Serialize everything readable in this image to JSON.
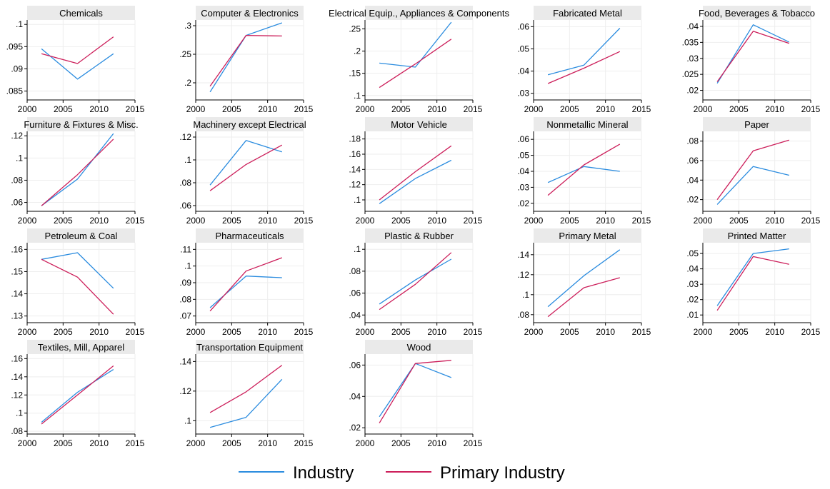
{
  "colors": {
    "industry": "#2b8cdf",
    "primary": "#cc1e5a",
    "header_bg": "#eaeaea",
    "grid": "#eeeeee",
    "axis": "#000000"
  },
  "chart_data": {
    "type": "line",
    "layout": "small-multiples",
    "x": [
      2002,
      2007,
      2012
    ],
    "x_ticks": [
      2000,
      2005,
      2010,
      2015
    ],
    "x_tick_labels": [
      "2000",
      "2005",
      "2010",
      "2015"
    ],
    "xlim": [
      2000,
      2015
    ],
    "grid": true,
    "legend": {
      "position": "bottom",
      "entries": [
        {
          "name": "Industry",
          "color": "#2b8cdf"
        },
        {
          "name": "Primary Industry",
          "color": "#cc1e5a"
        }
      ]
    },
    "panels": [
      {
        "title": "Chemicals",
        "ylim": [
          0.083,
          0.101
        ],
        "y_ticks": [
          0.085,
          0.09,
          0.095,
          0.1
        ],
        "y_tick_labels": [
          ".085",
          ".09",
          ".095",
          ".1"
        ],
        "series": [
          {
            "name": "Industry",
            "values": [
              0.0945,
              0.0877,
              0.0934
            ]
          },
          {
            "name": "Primary Industry",
            "values": [
              0.0934,
              0.0912,
              0.0972
            ]
          }
        ]
      },
      {
        "title": "Computer & Electronics",
        "ylim": [
          0.17,
          0.31
        ],
        "y_ticks": [
          0.2,
          0.25,
          0.3
        ],
        "y_tick_labels": [
          ".2",
          ".25",
          ".3"
        ],
        "series": [
          {
            "name": "Industry",
            "values": [
              0.184,
              0.283,
              0.305
            ]
          },
          {
            "name": "Primary Industry",
            "values": [
              0.194,
              0.283,
              0.282
            ]
          }
        ]
      },
      {
        "title": "Electrical Equip., Appliances & Components",
        "ylim": [
          0.09,
          0.27
        ],
        "y_ticks": [
          0.1,
          0.15,
          0.2,
          0.25
        ],
        "y_tick_labels": [
          ".1",
          ".15",
          ".2",
          ".25"
        ],
        "series": [
          {
            "name": "Industry",
            "values": [
              0.173,
              0.164,
              0.265
            ]
          },
          {
            "name": "Primary Industry",
            "values": [
              0.118,
              0.171,
              0.227
            ]
          }
        ]
      },
      {
        "title": "Fabricated Metal",
        "ylim": [
          0.027,
          0.063
        ],
        "y_ticks": [
          0.03,
          0.04,
          0.05,
          0.06
        ],
        "y_tick_labels": [
          ".03",
          ".04",
          ".05",
          ".06"
        ],
        "series": [
          {
            "name": "Industry",
            "values": [
              0.0383,
              0.0427,
              0.0593
            ]
          },
          {
            "name": "Primary Industry",
            "values": [
              0.0344,
              0.0413,
              0.0488
            ]
          }
        ]
      },
      {
        "title": "Food, Beverages & Tobacco",
        "ylim": [
          0.017,
          0.042
        ],
        "y_ticks": [
          0.02,
          0.025,
          0.03,
          0.035,
          0.04
        ],
        "y_tick_labels": [
          ".02",
          ".025",
          ".03",
          ".035",
          ".04"
        ],
        "series": [
          {
            "name": "Industry",
            "values": [
              0.0222,
              0.0405,
              0.0351
            ]
          },
          {
            "name": "Primary Industry",
            "values": [
              0.0227,
              0.0385,
              0.0347
            ]
          }
        ]
      },
      {
        "title": "Furniture & Fixtures & Misc.",
        "ylim": [
          0.052,
          0.124
        ],
        "y_ticks": [
          0.06,
          0.08,
          0.1,
          0.12
        ],
        "y_tick_labels": [
          ".06",
          ".08",
          ".1",
          ".12"
        ],
        "series": [
          {
            "name": "Industry",
            "values": [
              0.057,
              0.081,
              0.122
            ]
          },
          {
            "name": "Primary Industry",
            "values": [
              0.057,
              0.085,
              0.117
            ]
          }
        ]
      },
      {
        "title": "Machinery except Electrical",
        "ylim": [
          0.055,
          0.125
        ],
        "y_ticks": [
          0.06,
          0.08,
          0.1,
          0.12
        ],
        "y_tick_labels": [
          ".06",
          ".08",
          ".1",
          ".12"
        ],
        "series": [
          {
            "name": "Industry",
            "values": [
              0.078,
              0.117,
              0.107
            ]
          },
          {
            "name": "Primary Industry",
            "values": [
              0.073,
              0.096,
              0.113
            ]
          }
        ]
      },
      {
        "title": "Motor Vehicle",
        "ylim": [
          0.085,
          0.19
        ],
        "y_ticks": [
          0.1,
          0.12,
          0.14,
          0.16,
          0.18
        ],
        "y_tick_labels": [
          ".1",
          ".12",
          ".14",
          ".16",
          ".18"
        ],
        "series": [
          {
            "name": "Industry",
            "values": [
              0.095,
              0.128,
              0.152
            ]
          },
          {
            "name": "Primary Industry",
            "values": [
              0.1,
              0.137,
              0.171
            ]
          }
        ]
      },
      {
        "title": "Nonmetallic Mineral",
        "ylim": [
          0.015,
          0.065
        ],
        "y_ticks": [
          0.02,
          0.03,
          0.04,
          0.05,
          0.06
        ],
        "y_tick_labels": [
          ".02",
          ".03",
          ".04",
          ".05",
          ".06"
        ],
        "series": [
          {
            "name": "Industry",
            "values": [
              0.033,
              0.043,
              0.04
            ]
          },
          {
            "name": "Primary Industry",
            "values": [
              0.025,
              0.044,
              0.057
            ]
          }
        ]
      },
      {
        "title": "Paper",
        "ylim": [
          0.008,
          0.09
        ],
        "y_ticks": [
          0.02,
          0.04,
          0.06,
          0.08
        ],
        "y_tick_labels": [
          ".02",
          ".04",
          ".06",
          ".08"
        ],
        "series": [
          {
            "name": "Industry",
            "values": [
              0.015,
              0.054,
              0.045
            ]
          },
          {
            "name": "Primary Industry",
            "values": [
              0.02,
              0.07,
              0.081
            ]
          }
        ]
      },
      {
        "title": "Petroleum & Coal",
        "ylim": [
          0.127,
          0.163
        ],
        "y_ticks": [
          0.13,
          0.14,
          0.15,
          0.16
        ],
        "y_tick_labels": [
          ".13",
          ".14",
          ".15",
          ".16"
        ],
        "series": [
          {
            "name": "Industry",
            "values": [
              0.1555,
              0.1585,
              0.1425
            ]
          },
          {
            "name": "Primary Industry",
            "values": [
              0.1555,
              0.1475,
              0.1308
            ]
          }
        ]
      },
      {
        "title": "Pharmaceuticals",
        "ylim": [
          0.066,
          0.114
        ],
        "y_ticks": [
          0.07,
          0.08,
          0.09,
          0.1,
          0.11
        ],
        "y_tick_labels": [
          ".07",
          ".08",
          ".09",
          ".1",
          ".11"
        ],
        "series": [
          {
            "name": "Industry",
            "values": [
              0.075,
              0.094,
              0.093
            ]
          },
          {
            "name": "Primary Industry",
            "values": [
              0.073,
              0.097,
              0.105
            ]
          }
        ]
      },
      {
        "title": "Plastic & Rubber",
        "ylim": [
          0.033,
          0.106
        ],
        "y_ticks": [
          0.04,
          0.06,
          0.08,
          0.1
        ],
        "y_tick_labels": [
          ".04",
          ".06",
          ".08",
          ".1"
        ],
        "series": [
          {
            "name": "Industry",
            "values": [
              0.05,
              0.072,
              0.091
            ]
          },
          {
            "name": "Primary Industry",
            "values": [
              0.045,
              0.068,
              0.097
            ]
          }
        ]
      },
      {
        "title": "Primary Metal",
        "ylim": [
          0.072,
          0.152
        ],
        "y_ticks": [
          0.08,
          0.1,
          0.12,
          0.14
        ],
        "y_tick_labels": [
          ".08",
          ".1",
          ".12",
          ".14"
        ],
        "series": [
          {
            "name": "Industry",
            "values": [
              0.088,
              0.119,
              0.145
            ]
          },
          {
            "name": "Primary Industry",
            "values": [
              0.078,
              0.107,
              0.117
            ]
          }
        ]
      },
      {
        "title": "Printed Matter",
        "ylim": [
          0.005,
          0.057
        ],
        "y_ticks": [
          0.01,
          0.02,
          0.03,
          0.04,
          0.05
        ],
        "y_tick_labels": [
          ".01",
          ".02",
          ".03",
          ".04",
          ".05"
        ],
        "series": [
          {
            "name": "Industry",
            "values": [
              0.016,
              0.05,
              0.053
            ]
          },
          {
            "name": "Primary Industry",
            "values": [
              0.013,
              0.048,
              0.043
            ]
          }
        ]
      },
      {
        "title": "Textiles, Mill, Apparel",
        "ylim": [
          0.077,
          0.165
        ],
        "y_ticks": [
          0.08,
          0.1,
          0.12,
          0.14,
          0.16
        ],
        "y_tick_labels": [
          ".08",
          ".1",
          ".12",
          ".14",
          ".16"
        ],
        "series": [
          {
            "name": "Industry",
            "values": [
              0.09,
              0.123,
              0.148
            ]
          },
          {
            "name": "Primary Industry",
            "values": [
              0.088,
              0.12,
              0.152
            ]
          }
        ]
      },
      {
        "title": "Transportation Equipment",
        "ylim": [
          0.091,
          0.145
        ],
        "y_ticks": [
          0.1,
          0.12,
          0.14
        ],
        "y_tick_labels": [
          ".1",
          ".12",
          ".14"
        ],
        "series": [
          {
            "name": "Industry",
            "values": [
              0.0955,
              0.1023,
              0.128
            ]
          },
          {
            "name": "Primary Industry",
            "values": [
              0.1055,
              0.1195,
              0.1375
            ]
          }
        ]
      },
      {
        "title": "Wood",
        "ylim": [
          0.016,
          0.067
        ],
        "y_ticks": [
          0.02,
          0.04,
          0.06
        ],
        "y_tick_labels": [
          ".02",
          ".04",
          ".06"
        ],
        "series": [
          {
            "name": "Industry",
            "values": [
              0.027,
              0.061,
              0.052
            ]
          },
          {
            "name": "Primary Industry",
            "values": [
              0.023,
              0.061,
              0.063
            ]
          }
        ]
      }
    ]
  }
}
